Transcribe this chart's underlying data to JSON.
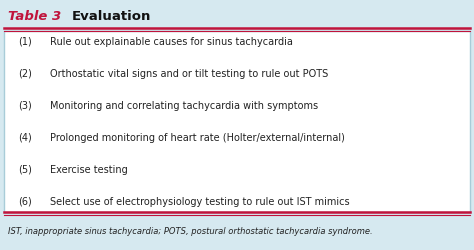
{
  "title_label": "Table 3",
  "title_text": "Evaluation",
  "items": [
    [
      "(1)",
      "Rule out explainable causes for sinus tachycardia"
    ],
    [
      "(2)",
      "Orthostatic vital signs and or tilt testing to rule out POTS"
    ],
    [
      "(3)",
      "Monitoring and correlating tachycardia with symptoms"
    ],
    [
      "(4)",
      "Prolonged monitoring of heart rate (Holter/external/internal)"
    ],
    [
      "(5)",
      "Exercise testing"
    ],
    [
      "(6)",
      "Select use of electrophysiology testing to rule out IST mimics"
    ]
  ],
  "footnote": "IST, inappropriate sinus tachycardia; POTS, postural orthostatic tachycardia syndrome.",
  "title_label_color": "#c0143c",
  "title_text_color": "#111111",
  "body_text_color": "#222222",
  "footnote_color": "#222222",
  "red_line_color": "#c0143c",
  "outer_bg": "#d6e9f0",
  "white_box_color": "#ffffff",
  "border_color": "#a8ccd8"
}
